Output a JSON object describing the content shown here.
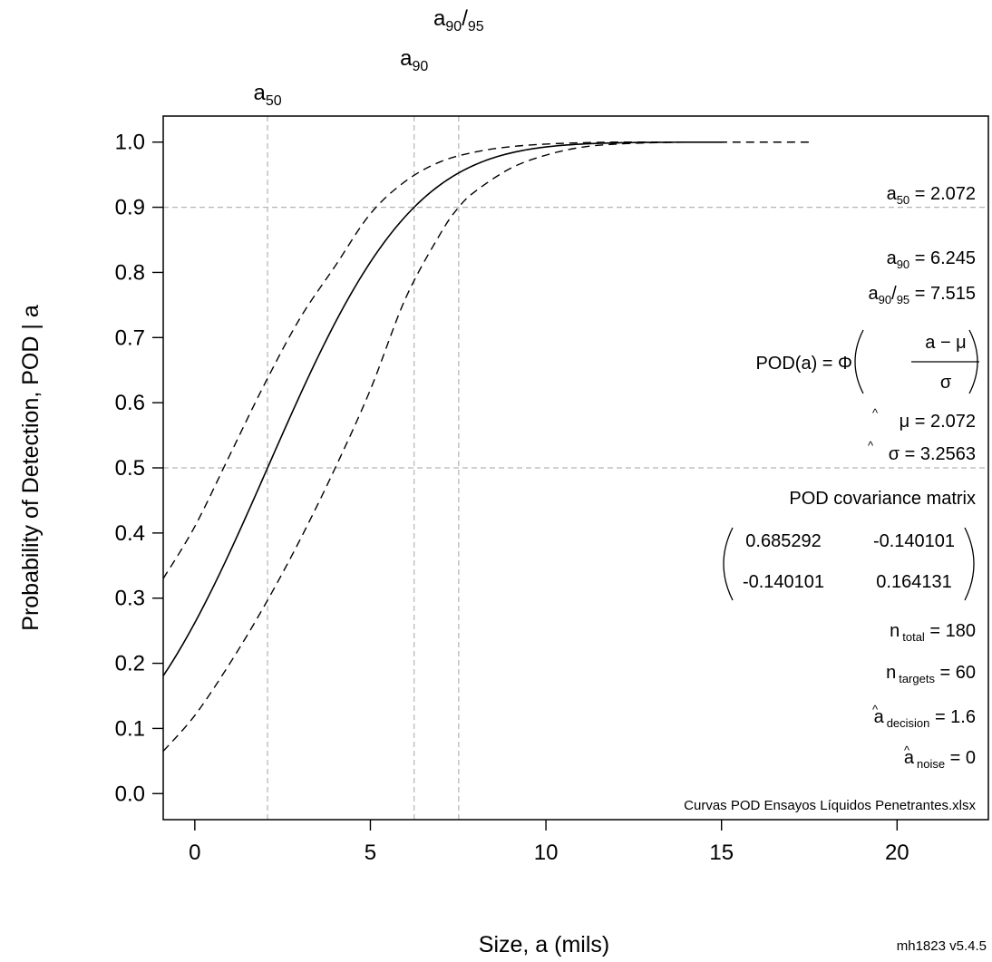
{
  "chart_data": {
    "type": "line",
    "xlabel": "Size, a  (mils)",
    "ylabel": "Probability of Detection, POD | a",
    "xlim": [
      -0.9,
      22.6
    ],
    "ylim": [
      -0.04,
      1.04
    ],
    "x_ticks": [
      0,
      5,
      10,
      15,
      20
    ],
    "x_tick_labels": [
      "0",
      "5",
      "10",
      "15",
      "20"
    ],
    "y_ticks": [
      0.0,
      0.1,
      0.2,
      0.3,
      0.4,
      0.5,
      0.6,
      0.7,
      0.8,
      0.9,
      1.0
    ],
    "y_tick_labels": [
      "0.0",
      "0.1",
      "0.2",
      "0.3",
      "0.4",
      "0.5",
      "0.6",
      "0.7",
      "0.8",
      "0.9",
      "1.0"
    ],
    "grid": false,
    "mu": 2.072,
    "sigma": 3.2563,
    "pod_curve": {
      "x_range": [
        -0.9,
        15.1
      ],
      "cdf_mu": 2.072,
      "cdf_sigma": 3.2563
    },
    "lower_bound": {
      "x": [
        -0.9,
        0.0,
        1.0,
        2.0,
        3.0,
        4.0,
        5.0,
        6.0,
        7.0,
        7.515,
        8.0,
        9.0,
        10.0,
        11.0,
        12.0,
        13.0,
        14.0
      ],
      "y": [
        0.065,
        0.12,
        0.2,
        0.29,
        0.39,
        0.5,
        0.62,
        0.76,
        0.86,
        0.9,
        0.925,
        0.96,
        0.98,
        0.992,
        0.997,
        0.999,
        1.0
      ]
    },
    "upper_bound": {
      "x": [
        -0.9,
        0.0,
        1.0,
        2.0,
        3.0,
        4.0,
        5.0,
        6.0,
        7.0,
        8.0,
        9.0,
        10.0,
        11.0,
        12.0,
        13.0,
        14.0,
        15.0,
        16.0,
        17.6
      ],
      "y": [
        0.33,
        0.41,
        0.52,
        0.63,
        0.73,
        0.81,
        0.89,
        0.94,
        0.97,
        0.985,
        0.993,
        0.997,
        0.999,
        1.0,
        1.0,
        1.0,
        1.0,
        1.0,
        1.0
      ]
    },
    "reference_lines": {
      "vertical": [
        {
          "x": 2.072,
          "label": "a",
          "sub": "50"
        },
        {
          "x": 6.245,
          "label": "a",
          "sub": "90"
        },
        {
          "x": 7.515,
          "label": "a",
          "sub": "90",
          "label2": "/",
          "sub2": "95"
        }
      ],
      "horizontal": [
        0.5,
        0.9
      ]
    },
    "annotations": {
      "a50": {
        "base": "a",
        "sub": "50",
        "value": " = 2.072"
      },
      "a90": {
        "base": "a",
        "sub": "90",
        "value": " = 6.245"
      },
      "a9095": {
        "base": "a",
        "sub": "90",
        "slash": "/",
        "sub2": "95",
        "value": " = 7.515"
      },
      "pod_formula": {
        "lhs": "POD(a) = Φ",
        "num": "a − μ",
        "den": "σ"
      },
      "mu_hat": {
        "hat": "^",
        "base": "μ",
        "value": " = 2.072"
      },
      "sigma_hat": {
        "hat": "^",
        "base": "σ",
        "value": " = 3.2563"
      },
      "covariance_title": "POD covariance matrix",
      "covariance": [
        [
          "0.685292",
          "-0.140101"
        ],
        [
          "-0.140101",
          "0.164131"
        ]
      ],
      "n_total": {
        "base": "n",
        "sub": "total",
        "value": " = 180"
      },
      "n_targets": {
        "base": "n",
        "sub": "targets",
        "value": " = 60"
      },
      "a_decision": {
        "hat": "^",
        "base": "a",
        "sub": "decision",
        "value": " = 1.6"
      },
      "a_noise": {
        "hat": "^",
        "base": "a",
        "sub": "noise",
        "value": " = 0"
      },
      "filename": "Curvas POD Ensayos Líquidos Penetrantes.xlsx"
    },
    "footer": "mh1823 v5.4.5",
    "colors": {
      "curve": "#000000",
      "reference": "#b4b4b4",
      "frame": "#000000"
    }
  }
}
